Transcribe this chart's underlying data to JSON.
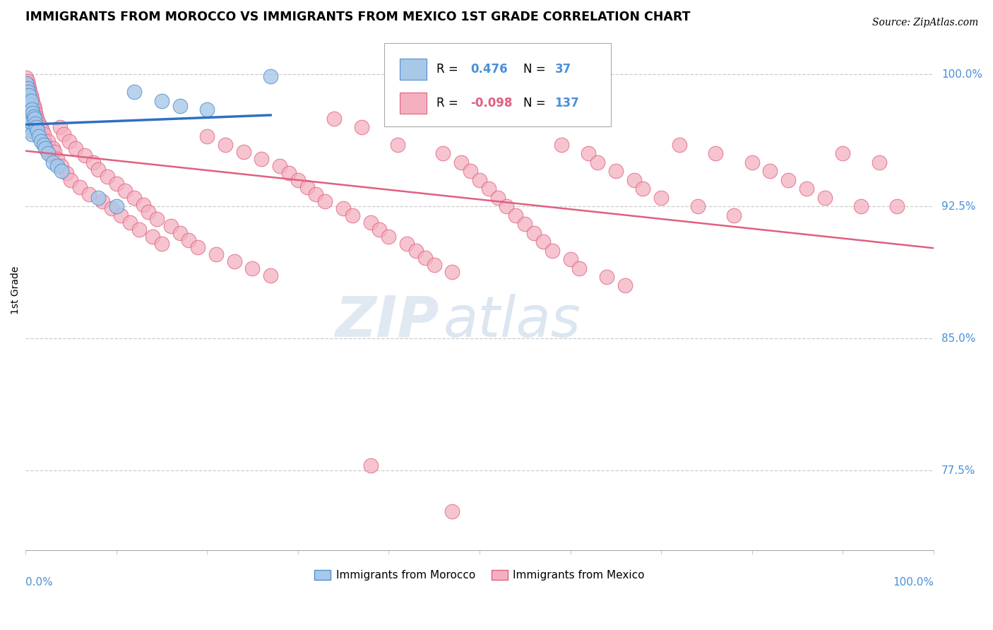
{
  "title": "IMMIGRANTS FROM MOROCCO VS IMMIGRANTS FROM MEXICO 1ST GRADE CORRELATION CHART",
  "source": "Source: ZipAtlas.com",
  "ylabel": "1st Grade",
  "right_yticks": [
    1.0,
    0.925,
    0.85,
    0.775
  ],
  "right_ytick_labels": [
    "100.0%",
    "92.5%",
    "85.0%",
    "77.5%"
  ],
  "legend_morocco": {
    "R": 0.476,
    "N": 37
  },
  "legend_mexico": {
    "R": -0.098,
    "N": 137
  },
  "color_morocco_fill": "#a8c8e8",
  "color_morocco_edge": "#5090d0",
  "color_mexico_fill": "#f4b0c0",
  "color_mexico_edge": "#e06080",
  "color_morocco_line": "#3070c0",
  "color_mexico_line": "#e06080",
  "color_label_blue": "#4a90d9",
  "watermark_zip": "ZIP",
  "watermark_atlas": "atlas",
  "xlim": [
    0.0,
    1.0
  ],
  "ylim": [
    0.73,
    1.025
  ]
}
